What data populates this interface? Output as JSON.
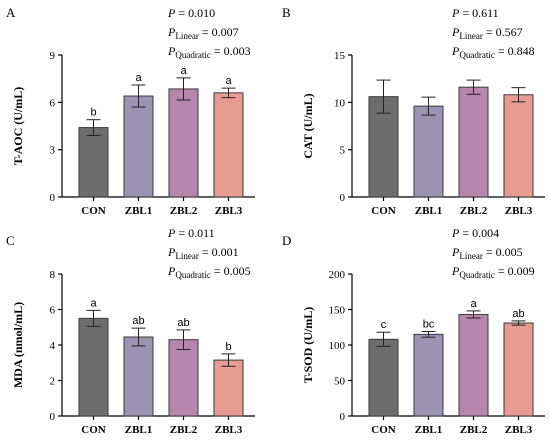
{
  "chart_data": [
    {
      "panel": "A",
      "type": "bar",
      "categories": [
        "CON",
        "ZBL1",
        "ZBL2",
        "ZBL3"
      ],
      "values": [
        4.4,
        6.4,
        6.85,
        6.6
      ],
      "errors": [
        0.5,
        0.7,
        0.7,
        0.3
      ],
      "letters": [
        "b",
        "a",
        "a",
        "a"
      ],
      "colors": [
        "#6d6d6d",
        "#9b93b3",
        "#b786ad",
        "#e79b91"
      ],
      "ylabel": "T-AOC (U/mL)",
      "ylim": [
        0,
        9
      ],
      "yticks": [
        0,
        3,
        6,
        9
      ],
      "stats": [
        {
          "sym": "P",
          "sub": "",
          "value": "= 0.010"
        },
        {
          "sym": "P",
          "sub": "Linear",
          "value": "= 0.007"
        },
        {
          "sym": "P",
          "sub": "Quadratic",
          "value": "= 0.003"
        }
      ]
    },
    {
      "panel": "B",
      "type": "bar",
      "categories": [
        "CON",
        "ZBL1",
        "ZBL2",
        "ZBL3"
      ],
      "values": [
        10.6,
        9.6,
        11.6,
        10.8
      ],
      "errors": [
        1.75,
        0.95,
        0.75,
        0.75
      ],
      "letters": [
        "",
        "",
        "",
        ""
      ],
      "colors": [
        "#6d6d6d",
        "#9b93b3",
        "#b786ad",
        "#e79b91"
      ],
      "ylabel": "CAT (U/mL)",
      "ylim": [
        0,
        15
      ],
      "yticks": [
        0,
        5,
        10,
        15
      ],
      "stats": [
        {
          "sym": "P",
          "sub": "",
          "value": "= 0.611"
        },
        {
          "sym": "P",
          "sub": "Linear",
          "value": "= 0.567"
        },
        {
          "sym": "P",
          "sub": "Quadratic",
          "value": "= 0.848"
        }
      ]
    },
    {
      "panel": "C",
      "type": "bar",
      "categories": [
        "CON",
        "ZBL1",
        "ZBL2",
        "ZBL3"
      ],
      "values": [
        5.5,
        4.45,
        4.3,
        3.15
      ],
      "errors": [
        0.45,
        0.5,
        0.55,
        0.35
      ],
      "letters": [
        "a",
        "ab",
        "ab",
        "b"
      ],
      "colors": [
        "#6d6d6d",
        "#9b93b3",
        "#b786ad",
        "#e79b91"
      ],
      "ylabel": "MDA (nmol/mL)",
      "ylim": [
        0,
        8
      ],
      "yticks": [
        0,
        2,
        4,
        6,
        8
      ],
      "stats": [
        {
          "sym": "P",
          "sub": "",
          "value": "= 0.011"
        },
        {
          "sym": "P",
          "sub": "Linear",
          "value": "= 0.001"
        },
        {
          "sym": "P",
          "sub": "Quadratic",
          "value": "= 0.005"
        }
      ]
    },
    {
      "panel": "D",
      "type": "bar",
      "categories": [
        "CON",
        "ZBL1",
        "ZBL2",
        "ZBL3"
      ],
      "values": [
        108,
        115,
        143,
        131
      ],
      "errors": [
        10,
        4,
        5,
        3
      ],
      "letters": [
        "c",
        "bc",
        "a",
        "ab"
      ],
      "colors": [
        "#6d6d6d",
        "#9b93b3",
        "#b786ad",
        "#e79b91"
      ],
      "ylabel": "T-SOD (U/mL)",
      "ylim": [
        0,
        200
      ],
      "yticks": [
        0,
        50,
        100,
        150,
        200
      ],
      "stats": [
        {
          "sym": "P",
          "sub": "",
          "value": "= 0.004"
        },
        {
          "sym": "P",
          "sub": "Linear",
          "value": "= 0.005"
        },
        {
          "sym": "P",
          "sub": "Quadratic",
          "value": "= 0.009"
        }
      ]
    }
  ]
}
